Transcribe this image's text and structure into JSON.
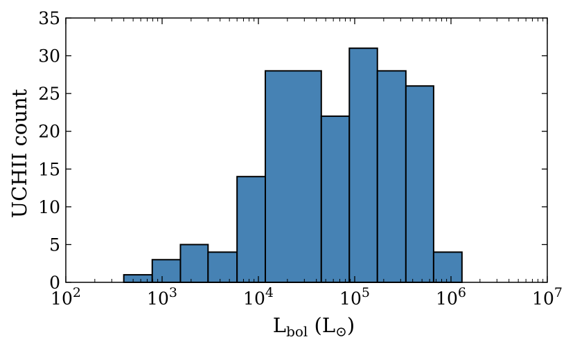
{
  "chart_data": {
    "type": "bar",
    "subtype": "histogram",
    "x_scale": "log",
    "color": "#4682b4",
    "edge_color": "#000000",
    "xlabel": {
      "main": "L",
      "sub": "bol",
      "unit_open": " (L",
      "unit_sub": "⊙",
      "unit_close": ")"
    },
    "ylabel": "UCHII count",
    "xlim": [
      100,
      10000000
    ],
    "ylim": [
      0,
      35
    ],
    "x_ticks": [
      {
        "value": 100,
        "base": "10",
        "exp": "2"
      },
      {
        "value": 1000,
        "base": "10",
        "exp": "3"
      },
      {
        "value": 10000,
        "base": "10",
        "exp": "4"
      },
      {
        "value": 100000,
        "base": "10",
        "exp": "5"
      },
      {
        "value": 1000000,
        "base": "10",
        "exp": "6"
      },
      {
        "value": 10000000,
        "base": "10",
        "exp": "7"
      }
    ],
    "y_ticks": [
      "0",
      "5",
      "10",
      "15",
      "20",
      "25",
      "30",
      "35"
    ],
    "bins": [
      {
        "x0": 400,
        "x1": 790,
        "count": 1
      },
      {
        "x0": 790,
        "x1": 1550,
        "count": 3
      },
      {
        "x0": 1550,
        "x1": 3000,
        "count": 5
      },
      {
        "x0": 3000,
        "x1": 6000,
        "count": 4
      },
      {
        "x0": 6000,
        "x1": 11800,
        "count": 14
      },
      {
        "x0": 11800,
        "x1": 45000,
        "count": 28
      },
      {
        "x0": 45000,
        "x1": 88000,
        "count": 22
      },
      {
        "x0": 88000,
        "x1": 172000,
        "count": 31
      },
      {
        "x0": 172000,
        "x1": 340000,
        "count": 28
      },
      {
        "x0": 340000,
        "x1": 660000,
        "count": 26
      },
      {
        "x0": 660000,
        "x1": 1300000,
        "count": 4
      }
    ],
    "grid": false,
    "legend": "none"
  }
}
